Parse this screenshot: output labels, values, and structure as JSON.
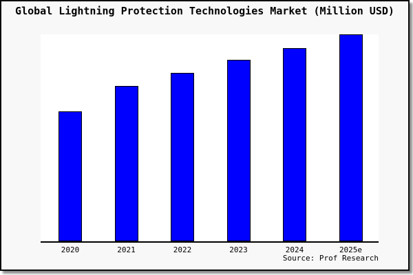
{
  "window": {
    "background": "#f8f8f8",
    "frame_border_color": "#0a0a0a",
    "shadow_color": "rgba(0,0,0,0.45)"
  },
  "chart_data": {
    "type": "bar",
    "title": "Global Lightning Protection Technologies Market (Million USD)",
    "categories": [
      "2020",
      "2021",
      "2022",
      "2023",
      "2024",
      "2025e"
    ],
    "values": [
      62.8,
      75.2,
      81.4,
      87.7,
      93.5,
      100
    ],
    "values_note": "Relative bar heights as % of tallest (2025e) bar; chart displays no numeric y-axis or data labels",
    "xlabel": "",
    "ylabel": "",
    "ylim": [
      0,
      100
    ],
    "grid": false,
    "legend": "none",
    "bar_color": "#0000ff",
    "bar_edge_color": "#000000",
    "plot_background": "#ffffff",
    "axis_line_color": "#000000",
    "source_label": "Source: Prof Research"
  }
}
